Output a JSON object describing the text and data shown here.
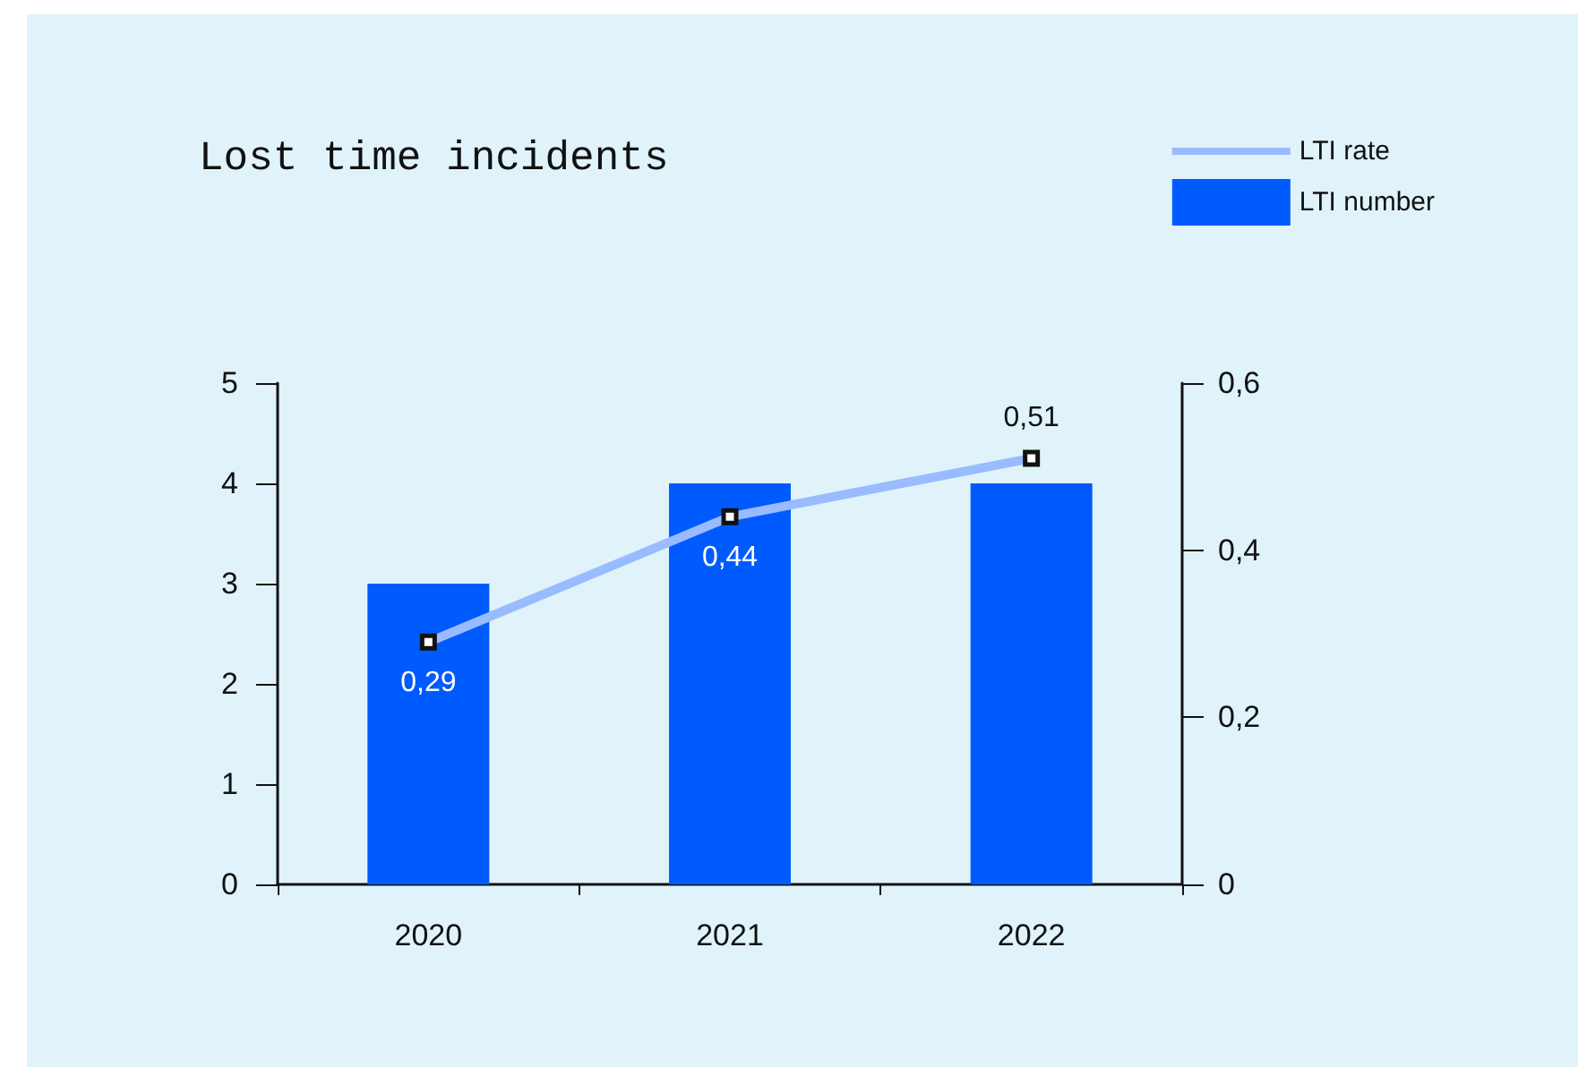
{
  "chart_data": {
    "type": "bar",
    "title": "Lost time incidents",
    "categories": [
      "2020",
      "2021",
      "2022"
    ],
    "series": [
      {
        "name": "LTI number",
        "color": "#005bff",
        "values": [
          3,
          4,
          4
        ]
      },
      {
        "name": "LTI rate",
        "type": "line",
        "axis": "y2",
        "color": "#99bbff",
        "values": [
          0.29,
          0.44,
          0.51
        ],
        "value_labels": [
          "0,29",
          "0,44",
          "0,51"
        ]
      }
    ],
    "ylim": [
      0,
      5
    ],
    "yticks": [
      0,
      1,
      2,
      3,
      4,
      5
    ],
    "y2lim": [
      0,
      0.6
    ],
    "y2ticks": [
      0,
      {
        "value": 0.2,
        "label": "0,2"
      },
      {
        "value": 0.4,
        "label": "0,4"
      },
      {
        "value": 0.6,
        "label": "0,6"
      }
    ],
    "legend": "top right",
    "grid": false,
    "marker": "square",
    "line_style": "solid"
  }
}
